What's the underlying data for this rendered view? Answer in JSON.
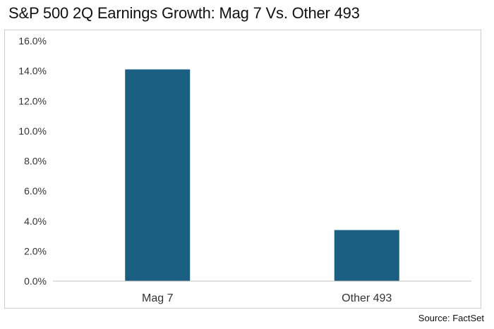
{
  "title": "S&P 500 2Q Earnings Growth: Mag 7 Vs. Other 493",
  "source": "Source: FactSet",
  "colors": {
    "bar": "#1a5f82",
    "axis": "#bfbfbf",
    "text": "#333333"
  },
  "chart_data": {
    "type": "bar",
    "title": "S&P 500 2Q Earnings Growth: Mag 7 Vs. Other 493",
    "xlabel": "",
    "ylabel": "",
    "categories": [
      "Mag 7",
      "Other 493"
    ],
    "values": [
      14.1,
      3.4
    ],
    "ylim": [
      0,
      16
    ],
    "yticks": [
      0,
      2,
      4,
      6,
      8,
      10,
      12,
      14,
      16
    ],
    "ytick_labels": [
      "0.0%",
      "2.0%",
      "4.0%",
      "6.0%",
      "8.0%",
      "10.0%",
      "12.0%",
      "14.0%",
      "16.0%"
    ],
    "grid": false,
    "legend": "none"
  }
}
